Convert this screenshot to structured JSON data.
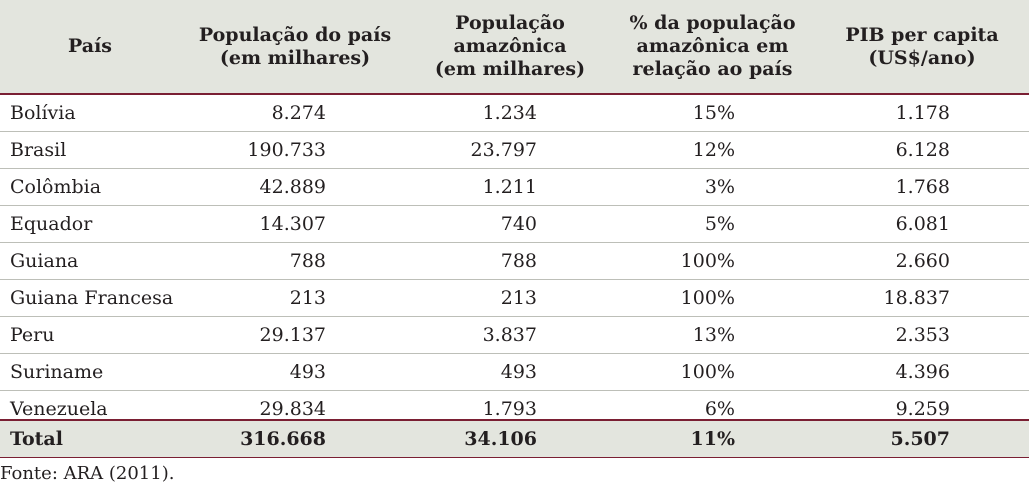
{
  "table": {
    "headers": [
      "País",
      "População do país\n(em milhares)",
      "População\namazônica\n(em milhares)",
      "% da população\namazônica em\nrelação ao país",
      "PIB per capita\n(US$/ano)"
    ],
    "rows": [
      [
        "Bolívia",
        "8.274",
        "1.234",
        "15%",
        "1.178"
      ],
      [
        "Brasil",
        "190.733",
        "23.797",
        "12%",
        "6.128"
      ],
      [
        "Colômbia",
        "42.889",
        "1.211",
        "3%",
        "1.768"
      ],
      [
        "Equador",
        "14.307",
        "740",
        "5%",
        "6.081"
      ],
      [
        "Guiana",
        "788",
        "788",
        "100%",
        "2.660"
      ],
      [
        "Guiana Francesa",
        "213",
        "213",
        "100%",
        "18.837"
      ],
      [
        "Peru",
        "29.137",
        "3.837",
        "13%",
        "2.353"
      ],
      [
        "Suriname",
        "493",
        "493",
        "100%",
        "4.396"
      ],
      [
        "Venezuela",
        "29.834",
        "1.793",
        "6%",
        "9.259"
      ]
    ],
    "total": [
      "Total",
      "316.668",
      "34.106",
      "11%",
      "5.507"
    ]
  },
  "source": "Fonte: ARA (2011).",
  "colors": {
    "header_bg": "#e3e5de",
    "rule": "#7a1f33",
    "row_border": "#bdbfb8"
  }
}
